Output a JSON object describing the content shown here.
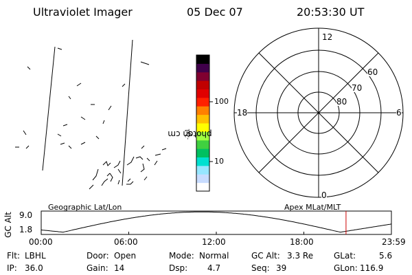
{
  "header": {
    "instrument": "Ultraviolet Imager",
    "date": "05 Dec 07",
    "time": "20:53:30 UT"
  },
  "colorbar": {
    "label_main": "photon cm",
    "label_exp1": "-2",
    "label_s": "s",
    "label_exp2": "-1",
    "ticks": [
      {
        "label": "100",
        "value": 100
      },
      {
        "label": "10",
        "value": 10
      }
    ],
    "colors": [
      "#ffffff",
      "#c8dcff",
      "#96e6ff",
      "#00e0d0",
      "#00c060",
      "#40d040",
      "#a0ff40",
      "#ffff00",
      "#ffc000",
      "#ff8000",
      "#ff2000",
      "#e00000",
      "#c00000",
      "#800030",
      "#40004a",
      "#000000"
    ]
  },
  "polar_plot": {
    "mlt_labels": {
      "top": "12",
      "left": "18",
      "right": "6",
      "bottom": "0"
    },
    "lat_labels": [
      "60",
      "70",
      "80"
    ]
  },
  "altitude_panel": {
    "left_title": "Geographic Lat/Lon",
    "right_title": "Apex MLat/MLT",
    "axis_label": "GC Alt",
    "y_ticks": [
      "9.0",
      "1.8"
    ],
    "x_ticks": [
      "00:00",
      "06:00",
      "12:00",
      "18:00",
      "23:59"
    ],
    "current_time_hours": 20.89,
    "marker_color": "#cc0000"
  },
  "status": {
    "flt_label": "Flt:",
    "flt_value": "LBHL",
    "ip_label": "IP:",
    "ip_value": "36.0",
    "door_label": "Door:",
    "door_value": "Open",
    "gain_label": "Gain:",
    "gain_value": "14",
    "mode_label": "Mode:",
    "mode_value": "Normal",
    "dsp_label": "Dsp:",
    "dsp_value": "4.7",
    "gcalt_label": "GC Alt:",
    "gcalt_value": "3.3 Re",
    "seq_label": "Seq:",
    "seq_value": "39",
    "glat_label": "GLat:",
    "glat_value": "5.6",
    "glon_label": "GLon:",
    "glon_value": "116.9"
  }
}
